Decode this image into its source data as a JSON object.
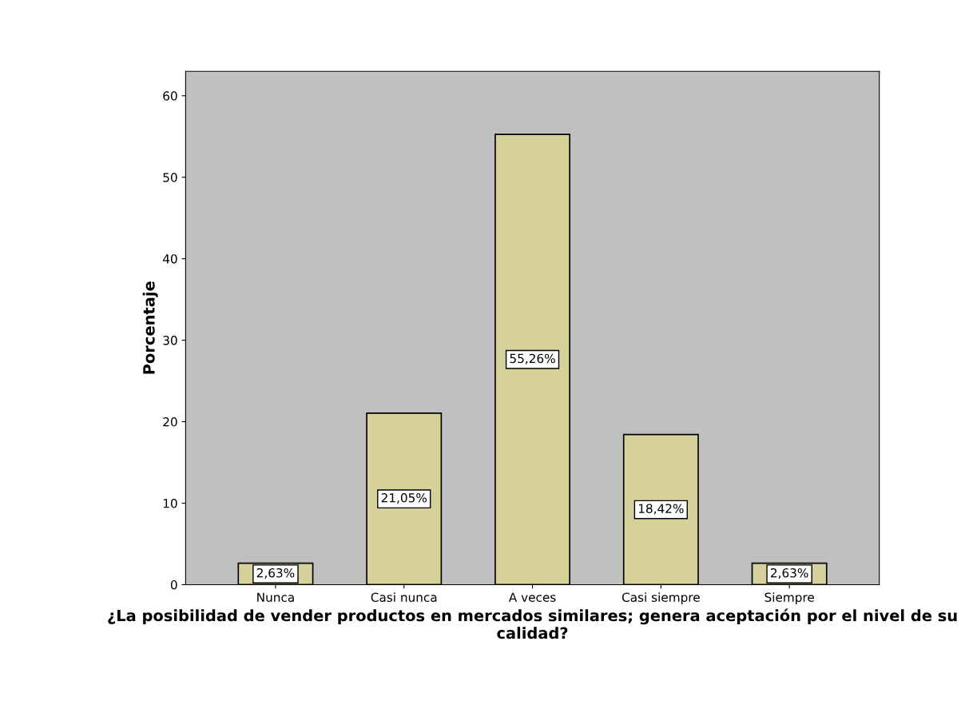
{
  "chart_data": {
    "type": "bar",
    "xlabel": "¿La posibilidad de vender productos en mercados similares; genera aceptación por el nivel de su calidad?",
    "ylabel": "Porcentaje",
    "categories": [
      "Nunca",
      "Casi nunca",
      "A veces",
      "Casi siempre",
      "Siempre"
    ],
    "values": [
      2.63,
      21.05,
      55.26,
      18.42,
      2.63
    ],
    "value_labels": [
      "2,63%",
      "21,05%",
      "55,26%",
      "18,42%",
      "2,63%"
    ],
    "color": "#d6d09a",
    "ylim": [
      0,
      63
    ],
    "yticks": [
      0,
      10,
      20,
      30,
      40,
      50,
      60
    ],
    "grid": false,
    "legend": false
  }
}
